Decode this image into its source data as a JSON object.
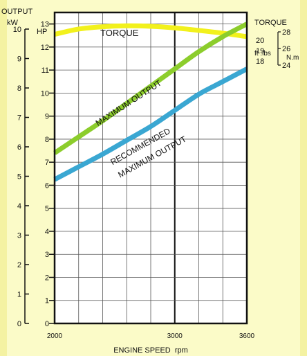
{
  "chart_data": {
    "type": "line",
    "background_color": "#fbfbc8",
    "plot_background_color": "#ffffff",
    "x": [
      2000,
      2200,
      2400,
      2600,
      2800,
      3000,
      3200,
      3400,
      3600
    ],
    "xlim": [
      2000,
      3600
    ],
    "x_ticks": [
      "2000",
      "3000",
      "3600"
    ],
    "xlabel": "ENGINE SPEED  rpm",
    "grid": true,
    "left_axis_kw": {
      "title_line1": "OUTPUT",
      "title_line2": "kW",
      "ticks": [
        "0",
        "1",
        "2",
        "3",
        "4",
        "5",
        "6",
        "7",
        "8",
        "9",
        "10"
      ],
      "ylim": [
        0,
        10
      ]
    },
    "left_axis_hp": {
      "title": "HP",
      "ticks": [
        "0",
        "1",
        "2",
        "3",
        "4",
        "5",
        "6",
        "7",
        "8",
        "9",
        "10",
        "11",
        "12",
        "13"
      ],
      "ylim": [
        0,
        13.5
      ]
    },
    "right_axis_ftlbs": {
      "title": "TORQUE",
      "unit": "ft .lbs",
      "ticks": [
        "18",
        "19",
        "20"
      ]
    },
    "right_axis_nm": {
      "unit": "N.m",
      "ticks": [
        "24",
        "26",
        "28"
      ]
    },
    "series": [
      {
        "name": "TORQUE",
        "axis": "torque_hp_equivalent",
        "color": "#f2f11c",
        "values": [
          12.55,
          12.78,
          12.88,
          12.92,
          12.9,
          12.83,
          12.72,
          12.6,
          12.45
        ]
      },
      {
        "name": "MAXIMUM OUTPUT",
        "axis": "hp",
        "color": "#8ccd2c",
        "values": [
          7.4,
          8.1,
          8.8,
          9.55,
          10.3,
          11.05,
          11.8,
          12.45,
          13.0
        ]
      },
      {
        "name": "RECOMMENDED MAXIMUM OUTPUT",
        "axis": "hp",
        "color": "#3aa7d2",
        "values": [
          6.25,
          6.8,
          7.35,
          7.95,
          8.55,
          9.25,
          9.95,
          10.5,
          11.05
        ]
      }
    ],
    "labels": {
      "torque": "TORQUE",
      "max_output": "MAXIMUM OUTPUT",
      "recommended_line1": "RECOMMENDED",
      "recommended_line2": "MAXIMUM OUTPUT"
    }
  }
}
